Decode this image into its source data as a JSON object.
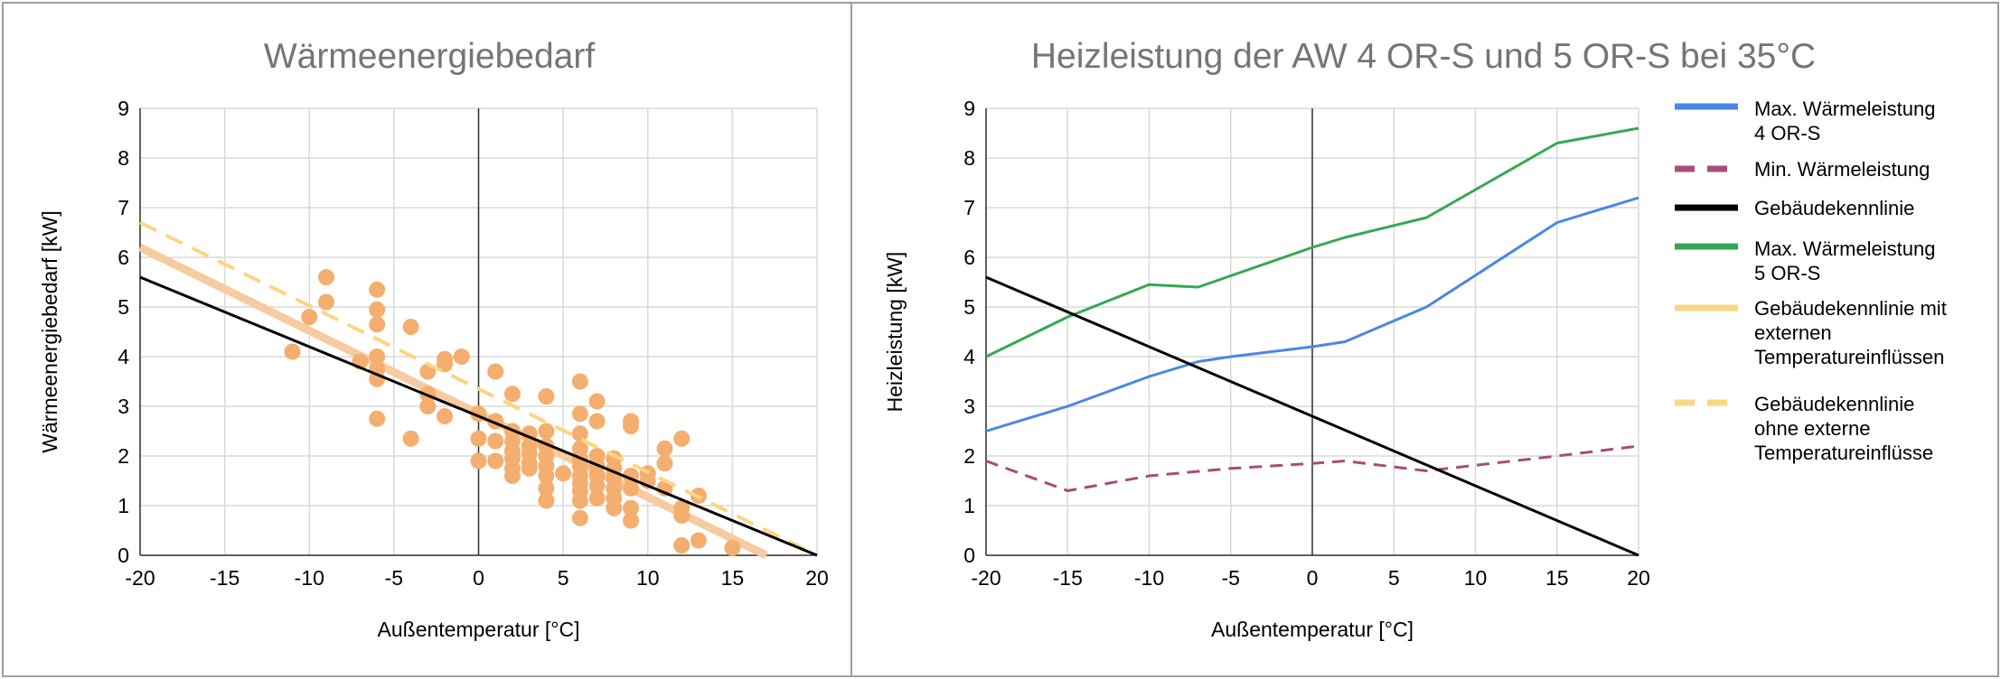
{
  "chart_data": [
    {
      "type": "scatter",
      "title": "Wärmeenergiebedarf",
      "xlabel": "Außentemperatur [°C]",
      "ylabel": "Wärmeenergiebedarf [kW]",
      "xlim": [
        -20,
        20
      ],
      "ylim": [
        0,
        9
      ],
      "xticks": [
        "-20",
        "-15",
        "-10",
        "-5",
        "0",
        "5",
        "10",
        "15",
        "20"
      ],
      "yticks": [
        "0",
        "1",
        "2",
        "3",
        "4",
        "5",
        "6",
        "7",
        "8",
        "9"
      ],
      "grid": true,
      "colors": {
        "points": "#F4AE6F",
        "trend": "#F6CBA0",
        "building": "#000000",
        "dashed": "#FAD683"
      },
      "points": [
        [
          -11,
          4.1
        ],
        [
          -10,
          4.8
        ],
        [
          -9,
          5.6
        ],
        [
          -9,
          5.1
        ],
        [
          -7,
          3.9
        ],
        [
          -6,
          5.35
        ],
        [
          -6,
          4.95
        ],
        [
          -6,
          4.65
        ],
        [
          -6,
          4.0
        ],
        [
          -6,
          3.75
        ],
        [
          -6,
          3.55
        ],
        [
          -6,
          2.75
        ],
        [
          -4,
          4.6
        ],
        [
          -4,
          2.35
        ],
        [
          -3,
          3.7
        ],
        [
          -3,
          3.25
        ],
        [
          -3,
          3.0
        ],
        [
          -2,
          3.95
        ],
        [
          -2,
          3.85
        ],
        [
          -2,
          2.8
        ],
        [
          -1,
          4.0
        ],
        [
          0,
          2.85
        ],
        [
          0,
          2.35
        ],
        [
          0,
          1.9
        ],
        [
          1,
          3.7
        ],
        [
          1,
          2.7
        ],
        [
          1,
          2.3
        ],
        [
          1,
          1.9
        ],
        [
          2,
          3.25
        ],
        [
          2,
          2.5
        ],
        [
          2,
          2.3
        ],
        [
          2,
          2.1
        ],
        [
          2,
          1.95
        ],
        [
          2,
          1.75
        ],
        [
          2,
          1.6
        ],
        [
          3,
          2.45
        ],
        [
          3,
          2.2
        ],
        [
          3,
          2.05
        ],
        [
          3,
          1.85
        ],
        [
          3,
          1.75
        ],
        [
          4,
          3.2
        ],
        [
          4,
          2.5
        ],
        [
          4,
          2.2
        ],
        [
          4,
          2.0
        ],
        [
          4,
          1.8
        ],
        [
          4,
          1.6
        ],
        [
          4,
          1.35
        ],
        [
          4,
          1.1
        ],
        [
          5,
          1.65
        ],
        [
          6,
          3.5
        ],
        [
          6,
          2.85
        ],
        [
          6,
          2.45
        ],
        [
          6,
          2.15
        ],
        [
          6,
          1.95
        ],
        [
          6,
          1.8
        ],
        [
          6,
          1.6
        ],
        [
          6,
          1.45
        ],
        [
          6,
          1.3
        ],
        [
          6,
          1.1
        ],
        [
          6,
          0.75
        ],
        [
          7,
          3.1
        ],
        [
          7,
          2.7
        ],
        [
          7,
          2.0
        ],
        [
          7,
          1.8
        ],
        [
          7,
          1.6
        ],
        [
          7,
          1.4
        ],
        [
          7,
          1.15
        ],
        [
          8,
          1.95
        ],
        [
          8,
          1.75
        ],
        [
          8,
          1.55
        ],
        [
          8,
          1.35
        ],
        [
          8,
          1.15
        ],
        [
          8,
          0.95
        ],
        [
          9,
          2.7
        ],
        [
          9,
          2.6
        ],
        [
          9,
          1.6
        ],
        [
          9,
          1.35
        ],
        [
          9,
          0.95
        ],
        [
          9,
          0.7
        ],
        [
          10,
          1.65
        ],
        [
          10,
          1.5
        ],
        [
          11,
          2.15
        ],
        [
          11,
          1.85
        ],
        [
          11,
          1.35
        ],
        [
          12,
          2.35
        ],
        [
          12,
          0.95
        ],
        [
          12,
          0.8
        ],
        [
          12,
          0.2
        ],
        [
          13,
          1.2
        ],
        [
          13,
          0.3
        ],
        [
          15,
          0.15
        ]
      ],
      "lines": [
        {
          "role": "trend",
          "x": [
            -20,
            17
          ],
          "y": [
            6.2,
            0
          ]
        },
        {
          "role": "building",
          "x": [
            -20,
            20
          ],
          "y": [
            5.6,
            0
          ]
        },
        {
          "role": "dashed",
          "x": [
            -20,
            20
          ],
          "y": [
            6.7,
            0
          ]
        }
      ]
    },
    {
      "type": "line",
      "title": "Heizleistung der AW 4 OR-S und 5 OR-S bei 35°C",
      "xlabel": "Außentemperatur [°C]",
      "ylabel": "Heizleistung [kW]",
      "xlim": [
        -20,
        20
      ],
      "ylim": [
        0,
        9
      ],
      "xticks": [
        "-20",
        "-15",
        "-10",
        "-5",
        "0",
        "5",
        "10",
        "15",
        "20"
      ],
      "yticks": [
        "0",
        "1",
        "2",
        "3",
        "4",
        "5",
        "6",
        "7",
        "8",
        "9"
      ],
      "grid": true,
      "legend_position": "right",
      "series": [
        {
          "name": "Max. Wärmeleistung 4 OR-S",
          "legend_lines": [
            "Max. Wärmeleistung",
            "4 OR-S"
          ],
          "color": "#4A86E8",
          "dash": false,
          "x": [
            -20,
            -15,
            -10,
            -7,
            -5,
            0,
            2,
            7,
            15,
            20
          ],
          "y": [
            2.5,
            3.0,
            3.6,
            3.9,
            4.0,
            4.2,
            4.3,
            5.0,
            6.7,
            7.2
          ]
        },
        {
          "name": "Min. Wärmeleistung",
          "legend_lines": [
            "Min. Wärmeleistung"
          ],
          "color": "#A64D79",
          "dash": true,
          "x": [
            -20,
            -15,
            -10,
            -5,
            0,
            2,
            7,
            15,
            20
          ],
          "y": [
            1.9,
            1.3,
            1.6,
            1.75,
            1.85,
            1.9,
            1.7,
            2.0,
            2.2
          ]
        },
        {
          "name": "Gebäudekennlinie",
          "legend_lines": [
            "Gebäudekennlinie"
          ],
          "color": "#000000",
          "dash": false,
          "x": [
            -20,
            20
          ],
          "y": [
            5.6,
            0
          ]
        },
        {
          "name": "Max. Wärmeleistung 5 OR-S",
          "legend_lines": [
            "Max. Wärmeleistung",
            "5 OR-S"
          ],
          "color": "#34A853",
          "dash": false,
          "x": [
            -20,
            -15,
            -10,
            -7,
            0,
            2,
            7,
            15,
            20
          ],
          "y": [
            4.0,
            4.8,
            5.45,
            5.4,
            6.2,
            6.4,
            6.8,
            8.3,
            8.6
          ]
        },
        {
          "name": "Gebäudekennlinie mit externen Temperatureinflüssen",
          "legend_lines": [
            "Gebäudekennlinie mit",
            "externen",
            "Temperatureinflüssen"
          ],
          "color": "#FAD683",
          "dash": false,
          "x": [],
          "y": []
        },
        {
          "name": "Gebäudekennlinie ohne externe Temperatureinflüsse",
          "legend_lines": [
            "Gebäudekennlinie",
            "ohne externe",
            "Temperatureinflüsse"
          ],
          "color": "#FAD683",
          "dash": true,
          "x": [],
          "y": []
        }
      ]
    }
  ]
}
